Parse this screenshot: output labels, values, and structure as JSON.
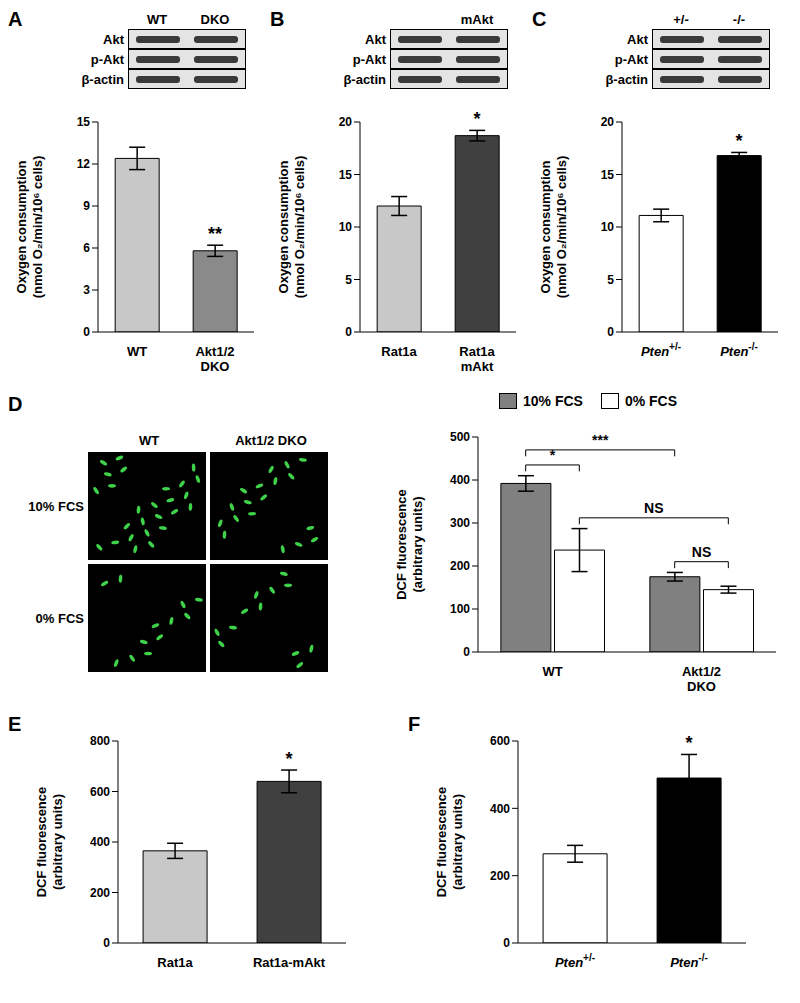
{
  "chart_data": [
    {
      "panel": "A",
      "type": "bar",
      "categories": [
        "WT",
        "Akt1/2 DKO"
      ],
      "values": [
        12.4,
        5.8
      ],
      "errors": [
        0.8,
        0.4
      ],
      "colors": [
        "#c8c8c8",
        "#8a8a8a"
      ],
      "significance": [
        null,
        "**"
      ],
      "y_label": [
        "Oxygen consumption",
        "(nmol O₂/min/10⁶ cells)"
      ],
      "ylim": [
        0,
        15
      ],
      "yticks": [
        0,
        3,
        6,
        9,
        12,
        15
      ],
      "blot": {
        "lanes": [
          "WT",
          "DKO"
        ],
        "rows": [
          "Akt",
          "p-Akt",
          "β-actin"
        ]
      }
    },
    {
      "panel": "B",
      "type": "bar",
      "categories": [
        "Rat1a",
        "Rat1a mAkt"
      ],
      "values": [
        12.0,
        18.7
      ],
      "errors": [
        0.9,
        0.5
      ],
      "colors": [
        "#c8c8c8",
        "#404040"
      ],
      "significance": [
        null,
        "*"
      ],
      "y_label": [
        "Oxygen consumption",
        "(nmol O₂/min/10⁶ cells)"
      ],
      "ylim": [
        0,
        20
      ],
      "yticks": [
        0,
        5,
        10,
        15,
        20
      ],
      "blot": {
        "lanes": [
          null,
          "mAkt"
        ],
        "rows": [
          "Akt",
          "p-Akt",
          "β-actin"
        ]
      }
    },
    {
      "panel": "C",
      "type": "bar",
      "categories": [
        "Pten+/-",
        "Pten-/-"
      ],
      "values": [
        11.1,
        16.8
      ],
      "errors": [
        0.6,
        0.3
      ],
      "colors": [
        "#ffffff",
        "#000000"
      ],
      "significance": [
        null,
        "*"
      ],
      "y_label": [
        "Oxygen consumption",
        "(nmol O₂/min/10⁶ cells)"
      ],
      "ylim": [
        0,
        20
      ],
      "yticks": [
        0,
        5,
        10,
        15,
        20
      ],
      "blot": {
        "lanes": [
          "+/-",
          "-/-"
        ],
        "rows": [
          "Akt",
          "p-Akt",
          "β-actin"
        ]
      }
    },
    {
      "panel": "D",
      "type": "bar",
      "categories": [
        "WT",
        "Akt1/2 DKO"
      ],
      "series": [
        {
          "name": "10% FCS",
          "color": "#808080",
          "values": [
            392,
            175
          ],
          "errors": [
            18,
            10
          ]
        },
        {
          "name": "0% FCS",
          "color": "#ffffff",
          "values": [
            237,
            145
          ],
          "errors": [
            50,
            8
          ]
        }
      ],
      "legend": "top",
      "y_label": [
        "DCF fluorescence",
        "(arbitrary units)"
      ],
      "ylim": [
        0,
        500
      ],
      "yticks": [
        0,
        100,
        200,
        300,
        400,
        500
      ],
      "comparisons": [
        {
          "between": [
            [
              0,
              0
            ],
            [
              0,
              1
            ]
          ],
          "label": "*"
        },
        {
          "between": [
            [
              1,
              0
            ],
            [
              1,
              1
            ]
          ],
          "label": "NS"
        },
        {
          "between": [
            [
              0,
              1
            ],
            [
              1,
              1
            ]
          ],
          "label": "NS"
        },
        {
          "between": [
            [
              0,
              0
            ],
            [
              1,
              0
            ]
          ],
          "label": "***"
        }
      ],
      "micrographs": {
        "columns": [
          "WT",
          "Akt1/2 DKO"
        ],
        "rows": [
          "10% FCS",
          "0% FCS"
        ]
      }
    },
    {
      "panel": "E",
      "type": "bar",
      "categories": [
        "Rat1a",
        "Rat1a-mAkt"
      ],
      "values": [
        365,
        640
      ],
      "errors": [
        30,
        45
      ],
      "colors": [
        "#c8c8c8",
        "#404040"
      ],
      "significance": [
        null,
        "*"
      ],
      "y_label": [
        "DCF fluorescence",
        "(arbitrary units)"
      ],
      "ylim": [
        0,
        800
      ],
      "yticks": [
        0,
        200,
        400,
        600,
        800
      ]
    },
    {
      "panel": "F",
      "type": "bar",
      "categories": [
        "Pten+/-",
        "Pten-/-"
      ],
      "values": [
        265,
        490
      ],
      "errors": [
        25,
        70
      ],
      "colors": [
        "#ffffff",
        "#000000"
      ],
      "significance": [
        null,
        "*"
      ],
      "y_label": [
        "DCF fluorescence",
        "(arbitrary units)"
      ],
      "ylim": [
        0,
        600
      ],
      "yticks": [
        0,
        200,
        400,
        600
      ]
    }
  ]
}
